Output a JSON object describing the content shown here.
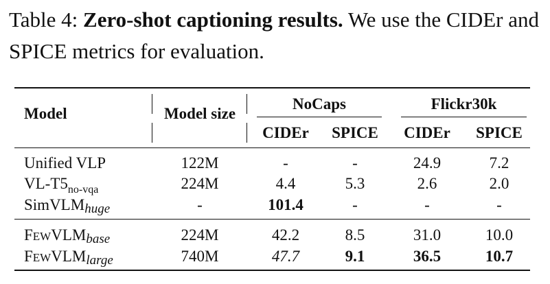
{
  "caption": {
    "label": "Table 4:",
    "title": "Zero-shot captioning results.",
    "text": "We use the CIDEr and SPICE metrics for evaluation."
  },
  "table": {
    "headers": {
      "model": "Model",
      "model_size": "Model size",
      "nocaps": "NoCaps",
      "flickr": "Flickr30k",
      "nocaps_cider": "CIDEr",
      "nocaps_spice": "SPICE",
      "flickr_cider": "CIDEr",
      "flickr_spice": "SPICE"
    },
    "rows": [
      {
        "model": "Unified VLP",
        "sub": "",
        "size": "122M",
        "nc_cider": "-",
        "nc_spice": "-",
        "fl_cider": "24.9",
        "fl_spice": "7.2"
      },
      {
        "model": "VL-T5",
        "sub": "no-vqa",
        "size": "224M",
        "nc_cider": "4.4",
        "nc_spice": "5.3",
        "fl_cider": "2.6",
        "fl_spice": "2.0"
      },
      {
        "model": "SimVLM",
        "sub": "huge",
        "size": "-",
        "nc_cider": "101.4",
        "nc_spice": "-",
        "fl_cider": "-",
        "fl_spice": "-"
      },
      {
        "model_first": "F",
        "model_rest": "EW",
        "model_tail": "VLM",
        "sub": "base",
        "size": "224M",
        "nc_cider": "42.2",
        "nc_spice": "8.5",
        "fl_cider": "31.0",
        "fl_spice": "10.0"
      },
      {
        "model_first": "F",
        "model_rest": "EW",
        "model_tail": "VLM",
        "sub": "large",
        "size": "740M",
        "nc_cider": "47.7",
        "nc_spice": "9.1",
        "fl_cider": "36.5",
        "fl_spice": "10.7"
      }
    ]
  }
}
